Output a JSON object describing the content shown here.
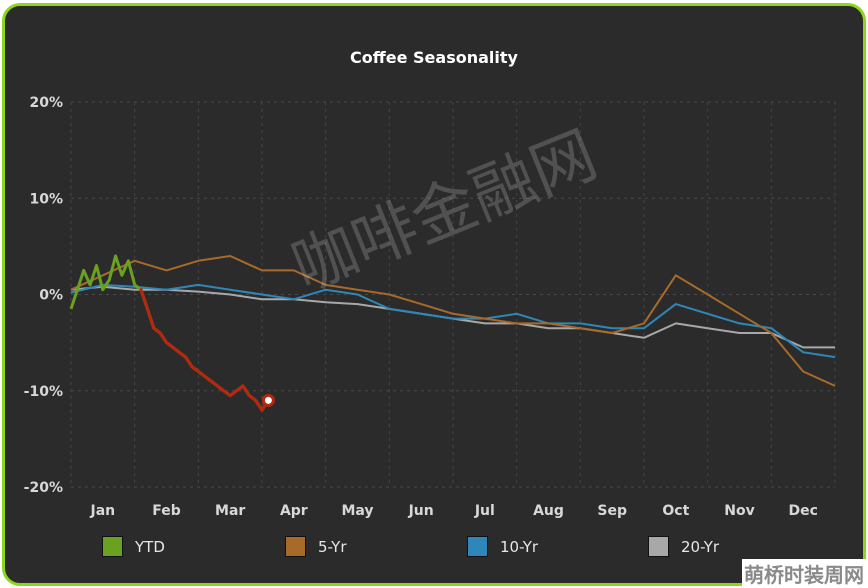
{
  "chart_data": {
    "type": "line",
    "title": "Coffee Seasonality",
    "xlabel": "",
    "ylabel": "",
    "ylim": [
      -20,
      20
    ],
    "y_ticks": [
      "20%",
      "10%",
      "0%",
      "-10%",
      "-20%"
    ],
    "categories": [
      "Jan",
      "Feb",
      "Mar",
      "Apr",
      "May",
      "Jun",
      "Jul",
      "Aug",
      "Sep",
      "Oct",
      "Nov",
      "Dec"
    ],
    "grid": true,
    "legend_position": "bottom",
    "series": [
      {
        "name": "YTD",
        "color": "#6aa120",
        "x": [
          0,
          0.1,
          0.2,
          0.3,
          0.4,
          0.5,
          0.6,
          0.7,
          0.8,
          0.9,
          1.0,
          1.1,
          1.2,
          1.3,
          1.4,
          1.5,
          1.6,
          1.7,
          1.8,
          1.9,
          2.0,
          2.1,
          2.2,
          2.3,
          2.4,
          2.5,
          2.6,
          2.7,
          2.8,
          2.9,
          3.0,
          3.1
        ],
        "values": [
          -1.5,
          0.5,
          2.5,
          1.0,
          3.0,
          0.5,
          1.5,
          4.0,
          2.0,
          3.5,
          1.0,
          0.5,
          -1.5,
          -3.5,
          -4.0,
          -5.0,
          -5.5,
          -6.0,
          -6.5,
          -7.5,
          -8.0,
          -8.5,
          -9.0,
          -9.5,
          -10.0,
          -10.5,
          -10.0,
          -9.5,
          -10.5,
          -11.0,
          -12.0,
          -11.0
        ],
        "end_marker": true
      },
      {
        "name": "5-Yr",
        "color": "#a76a2a",
        "x": [
          0,
          0.5,
          1.0,
          1.5,
          2.0,
          2.5,
          3.0,
          3.5,
          4.0,
          4.5,
          5.0,
          5.5,
          6.0,
          6.5,
          7.0,
          7.5,
          8.0,
          8.5,
          9.0,
          9.5,
          10.0,
          10.5,
          11.0,
          11.5,
          12.0
        ],
        "values": [
          0.5,
          2.0,
          3.5,
          2.5,
          3.5,
          4.0,
          2.5,
          2.5,
          1.0,
          0.5,
          0.0,
          -1.0,
          -2.0,
          -2.5,
          -3.0,
          -3.0,
          -3.5,
          -4.0,
          -3.0,
          2.0,
          0.0,
          -2.0,
          -4.0,
          -8.0,
          -9.5
        ]
      },
      {
        "name": "10-Yr",
        "color": "#2e87b8",
        "x": [
          0,
          0.5,
          1.0,
          1.5,
          2.0,
          2.5,
          3.0,
          3.5,
          4.0,
          4.5,
          5.0,
          5.5,
          6.0,
          6.5,
          7.0,
          7.5,
          8.0,
          8.5,
          9.0,
          9.5,
          10.0,
          10.5,
          11.0,
          11.5,
          12.0
        ],
        "values": [
          0.2,
          1.0,
          0.8,
          0.5,
          1.0,
          0.5,
          0.0,
          -0.5,
          0.5,
          0.0,
          -1.5,
          -2.0,
          -2.5,
          -2.5,
          -2.0,
          -3.0,
          -3.0,
          -3.5,
          -3.5,
          -1.0,
          -2.0,
          -3.0,
          -3.5,
          -6.0,
          -6.5
        ]
      },
      {
        "name": "20-Yr",
        "color": "#a8a8a8",
        "x": [
          0,
          0.5,
          1.0,
          1.5,
          2.0,
          2.5,
          3.0,
          3.5,
          4.0,
          4.5,
          5.0,
          5.5,
          6.0,
          6.5,
          7.0,
          7.5,
          8.0,
          8.5,
          9.0,
          9.5,
          10.0,
          10.5,
          11.0,
          11.5,
          12.0
        ],
        "values": [
          0.5,
          0.8,
          0.5,
          0.5,
          0.3,
          0.0,
          -0.5,
          -0.5,
          -0.8,
          -1.0,
          -1.5,
          -2.0,
          -2.5,
          -3.0,
          -3.0,
          -3.5,
          -3.5,
          -4.0,
          -4.5,
          -3.0,
          -3.5,
          -4.0,
          -4.0,
          -5.5,
          -5.5
        ]
      }
    ]
  },
  "watermark": "咖啡金融网",
  "corner_mark": "萌桥时装周网"
}
